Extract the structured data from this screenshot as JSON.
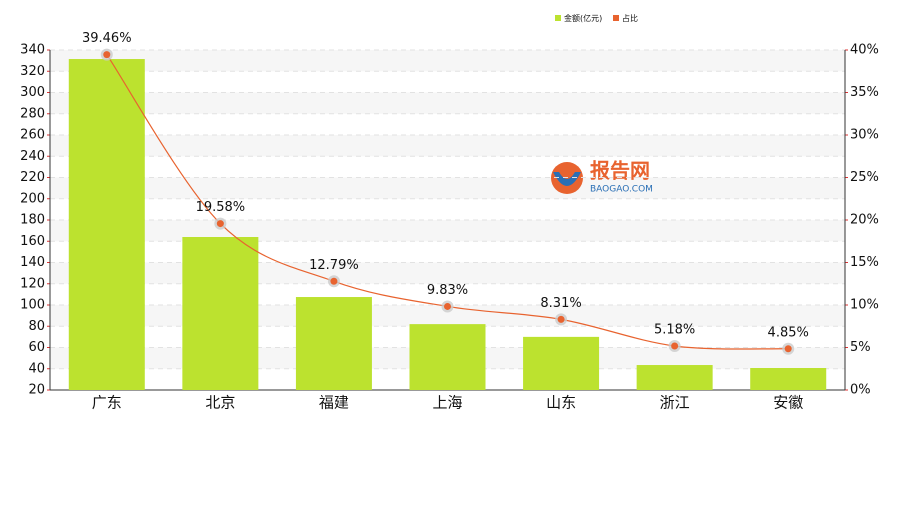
{
  "chart_data": {
    "type": "bar-line",
    "legend": "top-right",
    "watermark": {
      "name": "报告网",
      "url": "BAOGAO.COM"
    },
    "categories": [
      "广东",
      "北京",
      "福建",
      "上海",
      "山东",
      "浙江",
      "安徽"
    ],
    "series": [
      {
        "name": "金额(亿元)",
        "type": "bar",
        "color": "#bce22f",
        "values": [
          331.5,
          164,
          107.5,
          82,
          70,
          43.5,
          40.7
        ]
      },
      {
        "name": "占比",
        "type": "line",
        "axis": "y2",
        "color": "#e8632f",
        "values": [
          39.46,
          19.58,
          12.79,
          9.83,
          8.31,
          5.18,
          4.85
        ],
        "value_labels": [
          "39.46%",
          "19.58%",
          "12.79%",
          "9.83%",
          "8.31%",
          "5.18%",
          "4.85%"
        ]
      }
    ],
    "ylim": [
      20,
      340
    ],
    "yticks": [
      20,
      40,
      60,
      80,
      100,
      120,
      140,
      160,
      180,
      200,
      220,
      240,
      260,
      280,
      300,
      320,
      340
    ],
    "y2lim": [
      0,
      40
    ],
    "y2ticks": [
      {
        "value": 0,
        "label": "0%"
      },
      {
        "value": 5,
        "label": "5%"
      },
      {
        "value": 10,
        "label": "10%"
      },
      {
        "value": 15,
        "label": "15%"
      },
      {
        "value": 20,
        "label": "20%"
      },
      {
        "value": 25,
        "label": "25%"
      },
      {
        "value": 30,
        "label": "30%"
      },
      {
        "value": 35,
        "label": "35%"
      },
      {
        "value": 40,
        "label": "40%"
      }
    ],
    "grid": true
  }
}
